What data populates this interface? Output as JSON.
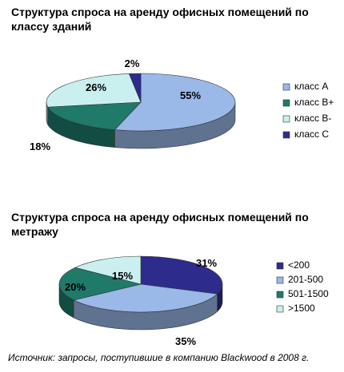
{
  "chart_data": [
    {
      "type": "pie",
      "title": "Структура спроса на аренду офисных помещений по классу зданий",
      "categories": [
        "класс А",
        "класс В+",
        "класс В-",
        "класс С"
      ],
      "values": [
        55,
        18,
        26,
        2
      ],
      "value_labels": [
        "55%",
        "18%",
        "26%",
        "2%"
      ],
      "colors": [
        "#9ab8e8",
        "#1f7a6a",
        "#c9f0ef",
        "#2d2c8c"
      ],
      "legend_position": "right"
    },
    {
      "type": "pie",
      "title": "Структура спроса на аренду офисных помещений по метражу",
      "categories": [
        "<200",
        "201-500",
        "501-1500",
        ">1500"
      ],
      "values": [
        31,
        35,
        20,
        15
      ],
      "value_labels": [
        "31%",
        "35%",
        "20%",
        "15%"
      ],
      "colors": [
        "#2d2c8c",
        "#9ab8e8",
        "#1f7a6a",
        "#c9f0ef"
      ],
      "legend_position": "right"
    }
  ],
  "source_note": "Источник: запросы, поступившие в компанию Blackwood в 2008 г."
}
